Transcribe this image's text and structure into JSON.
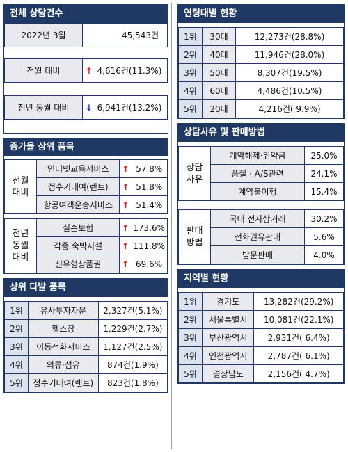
{
  "total": {
    "title": "전체 상담건수",
    "rows": [
      {
        "label": "2022년 3월",
        "arrow": "",
        "value": "45,543건"
      },
      {
        "label": "전월 대비",
        "arrow": "↑",
        "dir": "up",
        "value": "4,616건(11.3%)"
      },
      {
        "label": "전년 동월 대비",
        "arrow": "↓",
        "dir": "down",
        "value": "6,941건(13.2%)"
      }
    ]
  },
  "increase": {
    "title": "증가율 상위 품목",
    "groups": [
      {
        "label": "전월\n대비",
        "items": [
          {
            "name": "인터넷교육서비스",
            "arrow": "↑",
            "rate": "57.8%"
          },
          {
            "name": "정수기대여(렌트)",
            "arrow": "↑",
            "rate": "51.8%"
          },
          {
            "name": "항공여객운송서비스",
            "arrow": "↑",
            "rate": "51.4%"
          }
        ]
      },
      {
        "label": "전년\n동월\n대비",
        "items": [
          {
            "name": "실손보험",
            "arrow": "↑",
            "rate": "173.6%"
          },
          {
            "name": "각종 숙박시설",
            "arrow": "↑",
            "rate": "111.8%"
          },
          {
            "name": "신유형상품권",
            "arrow": "↑",
            "rate": "69.6%"
          }
        ]
      }
    ]
  },
  "top_items": {
    "title": "상위 다발 품목",
    "rows": [
      {
        "rank": "1위",
        "name": "유사투자자문",
        "value": "2,327건(5.1%)"
      },
      {
        "rank": "2위",
        "name": "헬스장",
        "value": "1,229건(2.7%)"
      },
      {
        "rank": "3위",
        "name": "이동전화서비스",
        "value": "1,127건(2.5%)"
      },
      {
        "rank": "4위",
        "name": "의류·섬유",
        "value": "874건(1.9%)"
      },
      {
        "rank": "5위",
        "name": "정수기대여(렌트)",
        "value": "823건(1.8%)"
      }
    ]
  },
  "age": {
    "title": "연령대별 현황",
    "rows": [
      {
        "rank": "1위",
        "name": "30대",
        "value": "12,273건(28.8%)"
      },
      {
        "rank": "2위",
        "name": "40대",
        "value": "11,946건(28.0%)"
      },
      {
        "rank": "3위",
        "name": "50대",
        "value": "8,307건(19.5%)"
      },
      {
        "rank": "4위",
        "name": "60대",
        "value": "4,486건(10.5%)"
      },
      {
        "rank": "5위",
        "name": "20대",
        "value": "4,216건( 9.9%)"
      }
    ]
  },
  "reasons": {
    "title": "상담사유 및 판매방법",
    "groups": [
      {
        "label": "상담\n사유",
        "items": [
          {
            "name": "계약해제·위약금",
            "rate": "25.0%"
          },
          {
            "name": "품질 · A/S관련",
            "rate": "24.1%"
          },
          {
            "name": "계약불이행",
            "rate": "15.4%"
          }
        ]
      },
      {
        "label": "판매\n방법",
        "items": [
          {
            "name": "국내 전자상거래",
            "rate": "30.2%"
          },
          {
            "name": "전화권유판매",
            "rate": "5.6%"
          },
          {
            "name": "방문판매",
            "rate": "4.0%"
          }
        ]
      }
    ]
  },
  "region": {
    "title": "지역별 현황",
    "rows": [
      {
        "rank": "1위",
        "name": "경기도",
        "value": "13,282건(29.2%)"
      },
      {
        "rank": "2위",
        "name": "서울특별시",
        "value": "10,081건(22.1%)"
      },
      {
        "rank": "3위",
        "name": "부산광역시",
        "value": "2,931건( 6.4%)"
      },
      {
        "rank": "4위",
        "name": "인천광역시",
        "value": "2,787건( 6.1%)"
      },
      {
        "rank": "5위",
        "name": "경상남도",
        "value": "2,156건( 4.7%)"
      }
    ]
  }
}
